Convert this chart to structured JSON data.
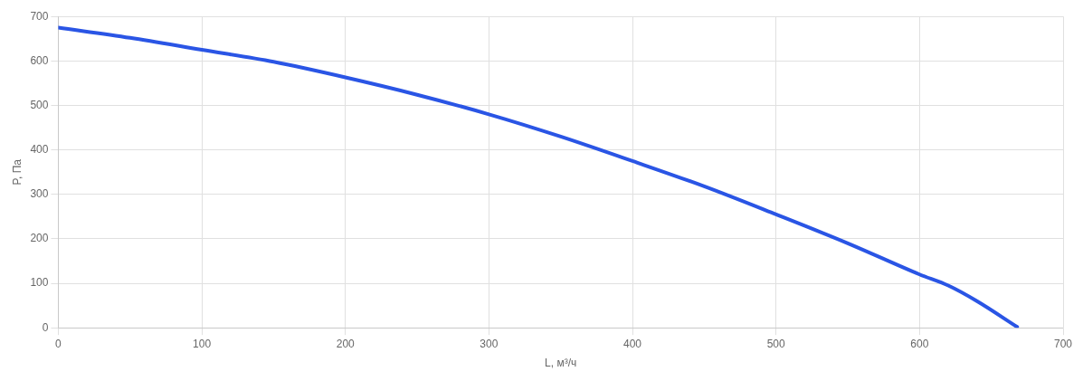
{
  "chart_data": {
    "type": "line",
    "xlabel": "L, м³/ч",
    "ylabel": "P, Па",
    "x": [
      0,
      50,
      100,
      150,
      200,
      250,
      300,
      350,
      400,
      450,
      500,
      550,
      600,
      620,
      640,
      668
    ],
    "series": [
      {
        "color": "#2a55e5",
        "values": [
          675,
          652,
          625,
          598,
          563,
          524,
          480,
          430,
          375,
          318,
          255,
          190,
          120,
          95,
          60,
          2
        ]
      }
    ],
    "xlim": [
      0,
      700
    ],
    "xticks": [
      0,
      100,
      200,
      300,
      400,
      500,
      600,
      700
    ],
    "ylim": [
      0,
      700
    ],
    "yticks": [
      0,
      100,
      200,
      300,
      400,
      500,
      600,
      700
    ],
    "grid": true,
    "legend": false,
    "marker": "none",
    "line_style": "solid"
  }
}
